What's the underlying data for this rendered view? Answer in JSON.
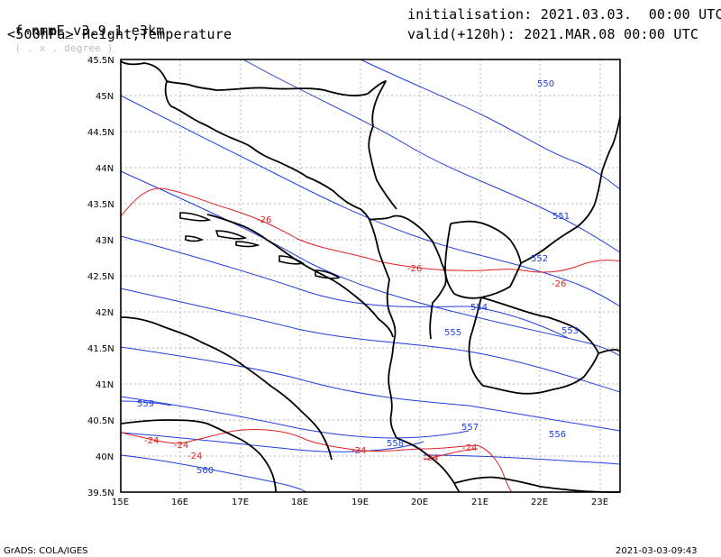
{
  "header": {
    "model": "f-nmmE_v3.9.1-e3km",
    "projection": "( . x . degree )",
    "field": "<500hPa> Height,Temperature",
    "init": "initialisation: 2021.03.03.  00:00 UTC",
    "valid": "valid(+120h): 2021.MAR.08 00:00 UTC"
  },
  "footer": {
    "credit": "GrADS: COLA/IGES",
    "timestamp": "2021-03-03-09:43"
  },
  "axes": {
    "lat_labels": [
      "45.5N",
      "45N",
      "44.5N",
      "44N",
      "43.5N",
      "43N",
      "42.5N",
      "42N",
      "41.5N",
      "41N",
      "40.5N",
      "40N",
      "39.5N"
    ],
    "lon_labels": [
      "15E",
      "16E",
      "17E",
      "18E",
      "19E",
      "20E",
      "21E",
      "22E",
      "23E"
    ]
  },
  "height_labels": [
    "550",
    "551",
    "552",
    "553",
    "554",
    "555",
    "556",
    "557",
    "558",
    "559",
    "560"
  ],
  "temp_labels": [
    "-26",
    "-26",
    "-26",
    "-24",
    "-24",
    "-24",
    "-24",
    "-24",
    "-24"
  ],
  "colors": {
    "height": "#1f3fdc",
    "temperature": "#e02020",
    "border": "#000000"
  }
}
